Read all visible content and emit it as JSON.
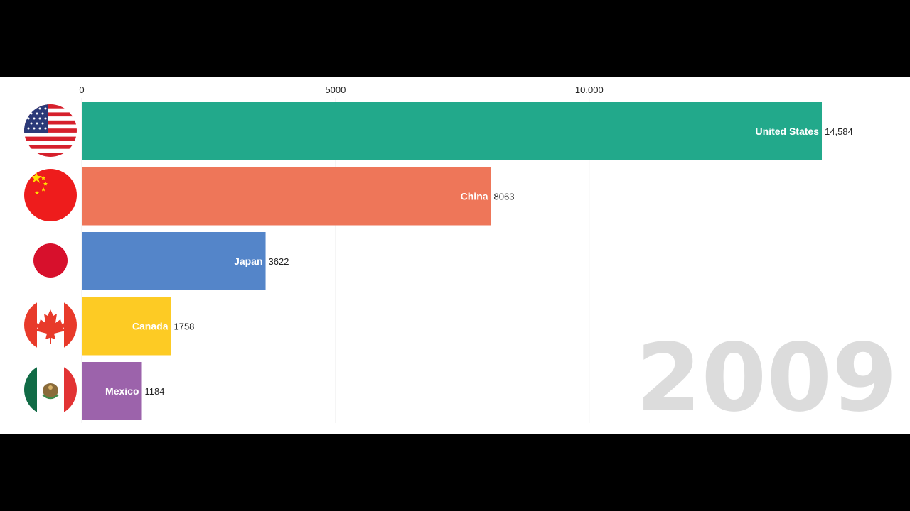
{
  "chart_data": {
    "type": "bar",
    "orientation": "horizontal",
    "title": "",
    "xlabel": "",
    "ylabel": "",
    "xlim": [
      0,
      15800
    ],
    "xticks": [
      {
        "value": 0,
        "label": "0"
      },
      {
        "value": 5000,
        "label": "5000"
      },
      {
        "value": 10000,
        "label": "10,000"
      }
    ],
    "grid": true,
    "year": "2009",
    "categories": [
      "United States",
      "China",
      "Japan",
      "Canada",
      "Mexico"
    ],
    "values": [
      14584,
      8063,
      3622,
      1758,
      1184
    ],
    "value_labels": [
      "14,584",
      "8063",
      "3622",
      "1758",
      "1184"
    ],
    "colors": [
      "#22a98b",
      "#ee7659",
      "#5485c9",
      "#fdcb24",
      "#9c63ab"
    ],
    "flags": [
      "us-flag-icon",
      "china-flag-icon",
      "japan-flag-icon",
      "canada-flag-icon",
      "mexico-flag-icon"
    ]
  }
}
